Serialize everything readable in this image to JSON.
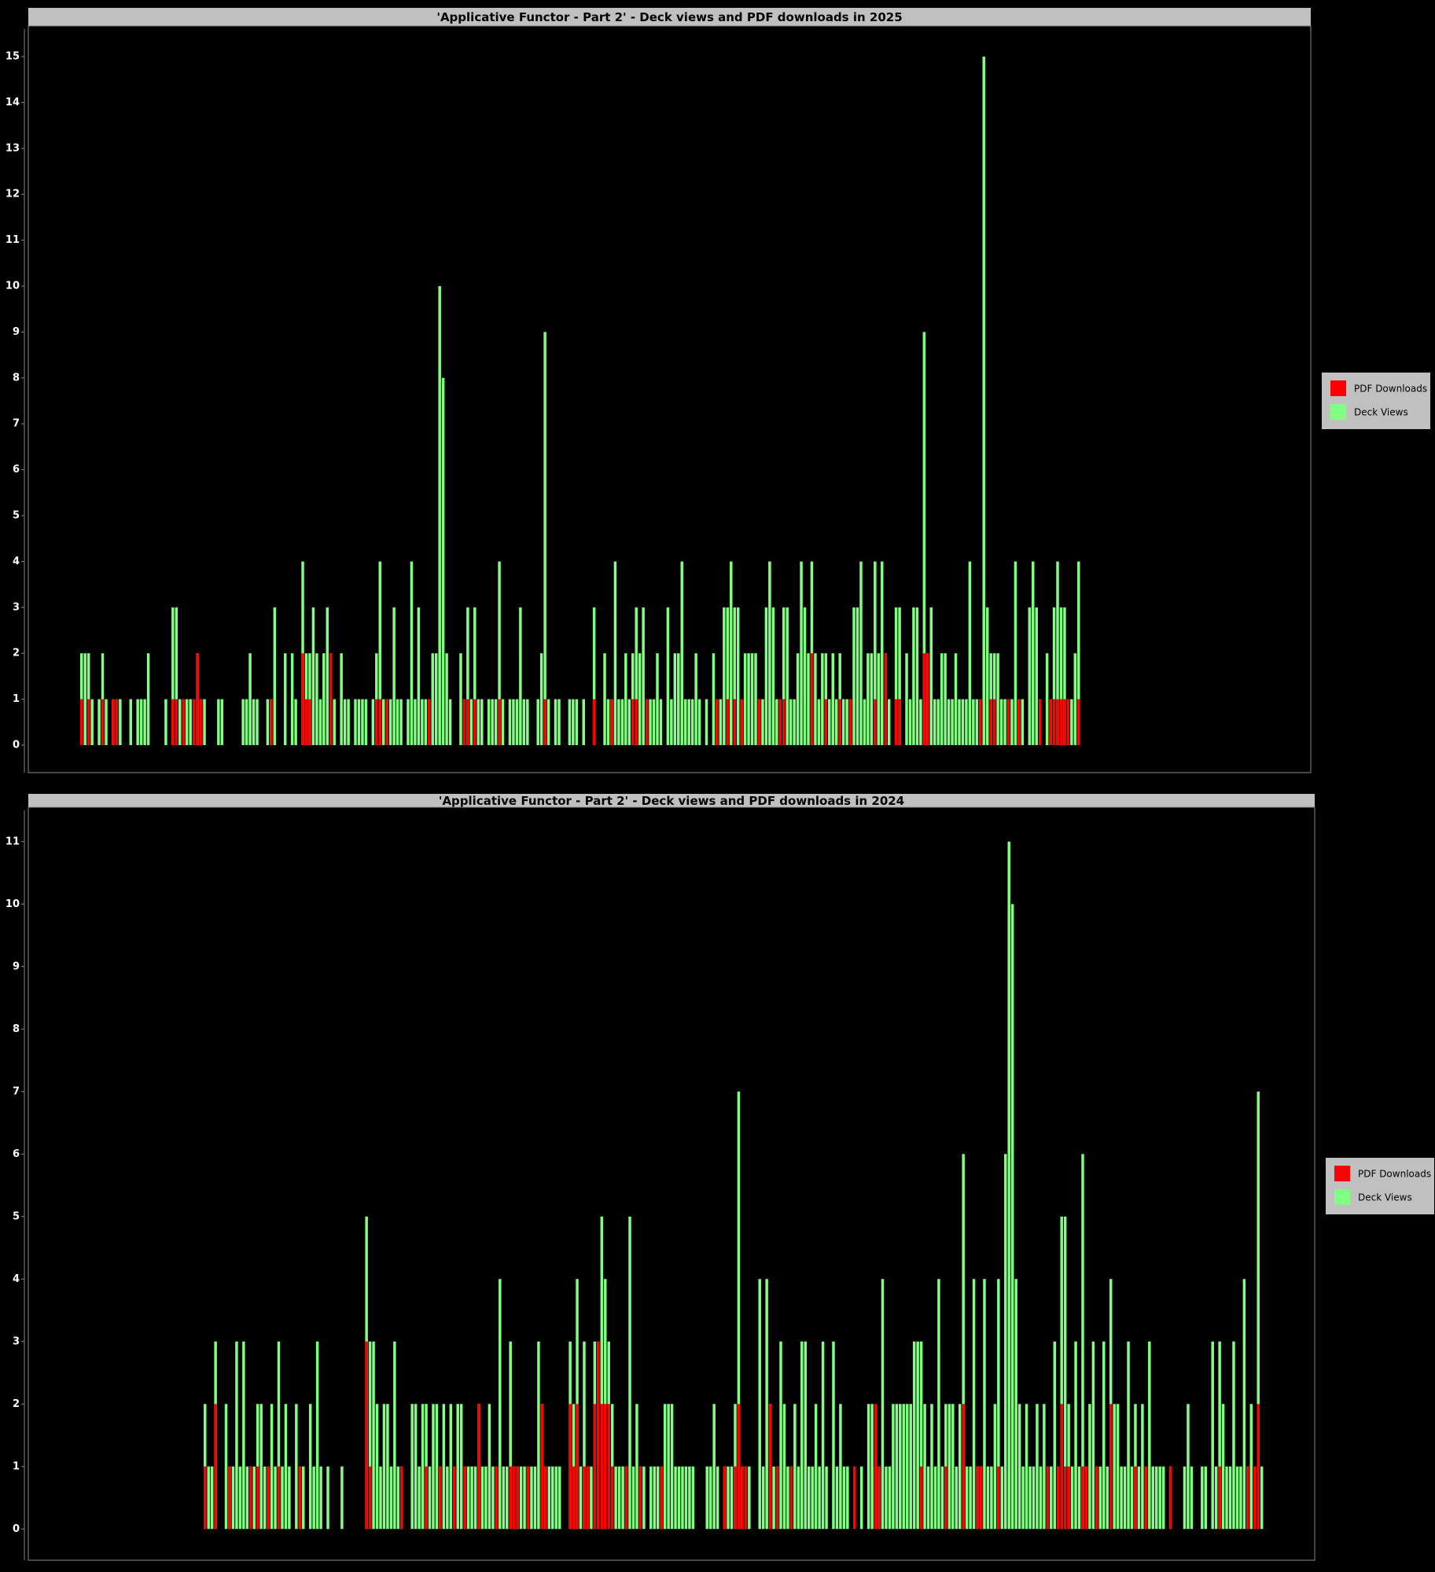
{
  "chart_data": [
    {
      "type": "bar",
      "title": "'Applicative Functor - Part 2' - Deck views and PDF downloads in 2025",
      "series": [
        {
          "name": "PDF Downloads",
          "color": "#ff0000",
          "values": [
            1,
            0,
            1,
            0,
            0,
            0,
            1,
            0,
            0,
            1,
            1,
            0,
            0,
            0,
            0,
            0,
            0,
            0,
            0,
            0,
            0,
            0,
            0,
            0,
            0,
            0,
            1,
            1,
            0,
            1,
            0,
            0,
            1,
            2,
            1,
            0,
            0,
            0,
            0,
            0,
            0,
            0,
            0,
            0,
            0,
            0,
            0,
            0,
            0,
            0,
            0,
            0,
            0,
            0,
            1,
            0,
            0,
            0,
            0,
            0,
            0,
            0,
            0,
            2,
            1,
            1,
            0,
            0,
            0,
            0,
            0,
            2,
            0,
            0,
            0,
            0,
            0,
            0,
            0,
            0,
            0,
            0,
            0,
            0,
            1,
            1,
            0,
            1,
            0,
            0,
            0,
            0,
            0,
            0,
            0,
            0,
            0,
            0,
            0,
            1,
            0,
            0,
            0,
            0,
            0,
            0,
            0,
            0,
            0,
            1,
            1,
            0,
            1,
            0,
            0,
            0,
            0,
            0,
            0,
            1,
            0,
            0,
            0,
            0,
            0,
            0,
            0,
            0,
            0,
            0,
            0,
            0,
            1,
            0,
            0,
            0,
            0,
            0,
            0,
            0,
            0,
            0,
            0,
            0,
            0,
            0,
            1,
            0,
            0,
            0,
            0,
            1,
            0,
            0,
            0,
            0,
            0,
            1,
            1,
            0,
            0,
            1,
            0,
            0,
            0,
            0,
            0,
            0,
            0,
            0,
            0,
            0,
            0,
            0,
            0,
            0,
            0,
            0,
            0,
            0,
            0,
            1,
            0,
            0,
            1,
            0,
            1,
            0,
            1,
            0,
            0,
            0,
            0,
            1,
            0,
            0,
            0,
            0,
            0,
            1,
            1,
            0,
            0,
            0,
            0,
            0,
            0,
            0,
            2,
            0,
            0,
            0,
            1,
            0,
            0,
            0,
            1,
            0,
            0,
            1,
            0,
            0,
            0,
            0,
            0,
            0,
            1,
            0,
            0,
            2,
            0,
            0,
            1,
            1,
            0,
            0,
            0,
            0,
            0,
            0,
            2,
            2,
            0,
            0,
            0,
            0,
            0,
            0,
            0,
            0,
            0,
            0,
            0,
            0,
            0,
            0,
            1,
            0,
            0,
            1,
            1,
            0,
            0,
            0,
            1,
            0,
            0,
            1,
            0,
            0,
            0,
            0,
            0,
            1,
            0,
            0,
            1,
            1,
            1,
            1,
            1,
            1,
            0,
            0,
            1
          ]
        },
        {
          "name": "Deck Views",
          "color": "#80ff80",
          "values": [
            2,
            2,
            2,
            1,
            0,
            1,
            2,
            1,
            0,
            1,
            1,
            1,
            0,
            0,
            1,
            0,
            1,
            1,
            1,
            2,
            0,
            0,
            0,
            0,
            1,
            0,
            3,
            3,
            1,
            1,
            1,
            1,
            1,
            2,
            1,
            1,
            0,
            0,
            0,
            1,
            1,
            0,
            0,
            0,
            0,
            0,
            1,
            1,
            2,
            1,
            1,
            0,
            0,
            1,
            1,
            3,
            0,
            0,
            2,
            0,
            2,
            1,
            0,
            4,
            2,
            2,
            3,
            2,
            1,
            2,
            3,
            2,
            1,
            0,
            2,
            1,
            1,
            0,
            1,
            1,
            1,
            1,
            0,
            1,
            2,
            4,
            1,
            1,
            1,
            3,
            1,
            1,
            0,
            1,
            4,
            1,
            3,
            1,
            1,
            1,
            2,
            2,
            10,
            8,
            2,
            1,
            0,
            0,
            2,
            1,
            3,
            1,
            3,
            1,
            1,
            0,
            1,
            1,
            1,
            4,
            1,
            0,
            1,
            1,
            1,
            3,
            1,
            1,
            0,
            0,
            1,
            2,
            9,
            1,
            0,
            1,
            1,
            0,
            0,
            1,
            1,
            1,
            0,
            1,
            0,
            0,
            3,
            0,
            0,
            2,
            1,
            1,
            4,
            1,
            1,
            2,
            1,
            2,
            3,
            2,
            3,
            1,
            1,
            1,
            2,
            1,
            0,
            3,
            1,
            2,
            2,
            4,
            1,
            1,
            1,
            2,
            1,
            0,
            1,
            0,
            2,
            1,
            1,
            3,
            3,
            4,
            3,
            3,
            1,
            2,
            2,
            2,
            2,
            1,
            1,
            3,
            4,
            3,
            1,
            1,
            3,
            3,
            1,
            1,
            2,
            4,
            3,
            2,
            4,
            2,
            1,
            2,
            2,
            1,
            2,
            1,
            2,
            1,
            1,
            1,
            3,
            3,
            4,
            1,
            2,
            2,
            4,
            2,
            4,
            2,
            1,
            0,
            3,
            3,
            0,
            2,
            1,
            3,
            3,
            1,
            9,
            2,
            3,
            1,
            1,
            2,
            2,
            1,
            1,
            2,
            1,
            1,
            1,
            4,
            1,
            1,
            1,
            15,
            3,
            2,
            2,
            2,
            1,
            1,
            1,
            1,
            4,
            1,
            1,
            0,
            3,
            4,
            3,
            1,
            0,
            2,
            1,
            3,
            4,
            3,
            3,
            1,
            1,
            2,
            4
          ]
        }
      ],
      "ylim": [
        -0.6,
        15.6
      ],
      "yticks": [
        0,
        1,
        2,
        3,
        4,
        5,
        6,
        7,
        8,
        9,
        10,
        11,
        12,
        13,
        14,
        15
      ],
      "legend": "right"
    },
    {
      "type": "bar",
      "title": "'Applicative Functor - Part 2' - Deck views and PDF downloads in 2024",
      "series": [
        {
          "name": "PDF Downloads",
          "color": "#ff0000",
          "values": [
            1,
            0,
            0,
            2,
            0,
            0,
            0,
            1,
            0,
            0,
            0,
            0,
            0,
            1,
            0,
            1,
            0,
            0,
            1,
            0,
            0,
            1,
            0,
            0,
            0,
            0,
            0,
            1,
            0,
            0,
            0,
            0,
            0,
            0,
            0,
            0,
            0,
            0,
            0,
            0,
            0,
            0,
            0,
            0,
            0,
            0,
            3,
            1,
            0,
            0,
            0,
            0,
            0,
            0,
            0,
            0,
            1,
            0,
            0,
            0,
            0,
            0,
            0,
            1,
            0,
            0,
            0,
            1,
            0,
            0,
            0,
            1,
            0,
            0,
            1,
            0,
            0,
            0,
            2,
            0,
            0,
            0,
            0,
            1,
            0,
            0,
            0,
            1,
            1,
            1,
            0,
            0,
            1,
            0,
            0,
            0,
            2,
            1,
            0,
            0,
            0,
            0,
            0,
            0,
            2,
            1,
            2,
            0,
            1,
            1,
            0,
            2,
            3,
            2,
            2,
            2,
            1,
            0,
            0,
            0,
            1,
            0,
            0,
            0,
            1,
            0,
            0,
            0,
            0,
            0,
            1,
            0,
            0,
            0,
            0,
            0,
            0,
            0,
            0,
            0,
            0,
            0,
            0,
            0,
            0,
            0,
            0,
            0,
            1,
            0,
            0,
            1,
            2,
            1,
            1,
            0,
            0,
            0,
            0,
            0,
            0,
            2,
            0,
            1,
            0,
            0,
            0,
            1,
            0,
            0,
            0,
            0,
            0,
            0,
            0,
            0,
            0,
            0,
            0,
            0,
            0,
            0,
            0,
            0,
            0,
            1,
            0,
            0,
            0,
            0,
            0,
            2,
            1,
            0,
            0,
            0,
            0,
            0,
            0,
            0,
            0,
            0,
            0,
            0,
            1,
            0,
            0,
            0,
            0,
            0,
            0,
            1,
            0,
            0,
            0,
            0,
            2,
            0,
            0,
            0,
            1,
            1,
            0,
            0,
            0,
            0,
            1,
            0,
            0,
            0,
            0,
            0,
            0,
            0,
            0,
            0,
            0,
            0,
            0,
            0,
            1,
            0,
            0,
            1,
            2,
            1,
            1,
            0,
            0,
            0,
            1,
            1,
            0,
            0,
            1,
            0,
            0,
            0,
            2,
            0,
            0,
            0,
            0,
            0,
            0,
            1,
            0,
            0,
            1,
            0,
            0,
            0,
            0,
            0,
            0,
            1,
            0,
            0,
            0,
            0,
            0,
            0,
            0,
            0,
            0,
            0,
            0,
            0,
            0,
            1,
            0,
            0,
            0,
            0,
            0,
            0,
            0,
            1,
            0,
            1,
            2,
            0
          ]
        },
        {
          "name": "Deck Views",
          "color": "#80ff80",
          "values": [
            2,
            1,
            1,
            3,
            0,
            0,
            2,
            1,
            1,
            3,
            1,
            3,
            1,
            1,
            1,
            2,
            2,
            1,
            1,
            2,
            1,
            3,
            1,
            2,
            1,
            0,
            2,
            1,
            1,
            0,
            2,
            1,
            3,
            1,
            0,
            1,
            0,
            0,
            0,
            1,
            0,
            0,
            0,
            0,
            0,
            0,
            5,
            3,
            3,
            2,
            1,
            2,
            2,
            1,
            3,
            1,
            1,
            0,
            0,
            2,
            2,
            1,
            2,
            2,
            1,
            2,
            2,
            1,
            2,
            1,
            2,
            1,
            2,
            2,
            1,
            1,
            1,
            1,
            2,
            1,
            1,
            2,
            1,
            1,
            4,
            1,
            1,
            3,
            1,
            1,
            1,
            1,
            1,
            1,
            1,
            3,
            2,
            1,
            1,
            1,
            1,
            1,
            0,
            0,
            3,
            2,
            4,
            1,
            3,
            1,
            1,
            3,
            3,
            5,
            4,
            3,
            2,
            1,
            1,
            1,
            1,
            5,
            1,
            2,
            1,
            1,
            0,
            1,
            1,
            1,
            1,
            2,
            2,
            2,
            1,
            1,
            1,
            1,
            1,
            1,
            0,
            0,
            0,
            1,
            1,
            2,
            1,
            0,
            1,
            1,
            1,
            2,
            7,
            1,
            1,
            1,
            0,
            0,
            4,
            1,
            4,
            2,
            1,
            1,
            3,
            2,
            1,
            1,
            2,
            1,
            3,
            3,
            1,
            1,
            2,
            1,
            3,
            1,
            0,
            3,
            1,
            2,
            1,
            1,
            0,
            0,
            0,
            1,
            0,
            2,
            2,
            1,
            1,
            4,
            1,
            1,
            2,
            2,
            2,
            2,
            2,
            2,
            3,
            3,
            3,
            2,
            1,
            2,
            1,
            4,
            1,
            2,
            2,
            2,
            1,
            2,
            6,
            1,
            1,
            4,
            1,
            1,
            4,
            1,
            1,
            2,
            4,
            1,
            6,
            11,
            10,
            4,
            2,
            1,
            2,
            1,
            1,
            2,
            1,
            2,
            1,
            1,
            3,
            1,
            5,
            5,
            2,
            1,
            3,
            1,
            6,
            1,
            2,
            3,
            1,
            1,
            3,
            1,
            4,
            2,
            2,
            1,
            1,
            3,
            1,
            2,
            1,
            2,
            1,
            3,
            1,
            1,
            1,
            1,
            0,
            1,
            0,
            0,
            0,
            1,
            2,
            1,
            0,
            0,
            1,
            1,
            0,
            3,
            1,
            3,
            2,
            1,
            1,
            3,
            1,
            1,
            4,
            1,
            2,
            1,
            7,
            1
          ]
        }
      ],
      "ylim": [
        -0.5,
        11.5
      ],
      "yticks": [
        0,
        1,
        2,
        3,
        4,
        5,
        6,
        7,
        8,
        9,
        10,
        11
      ],
      "legend": "right"
    }
  ]
}
